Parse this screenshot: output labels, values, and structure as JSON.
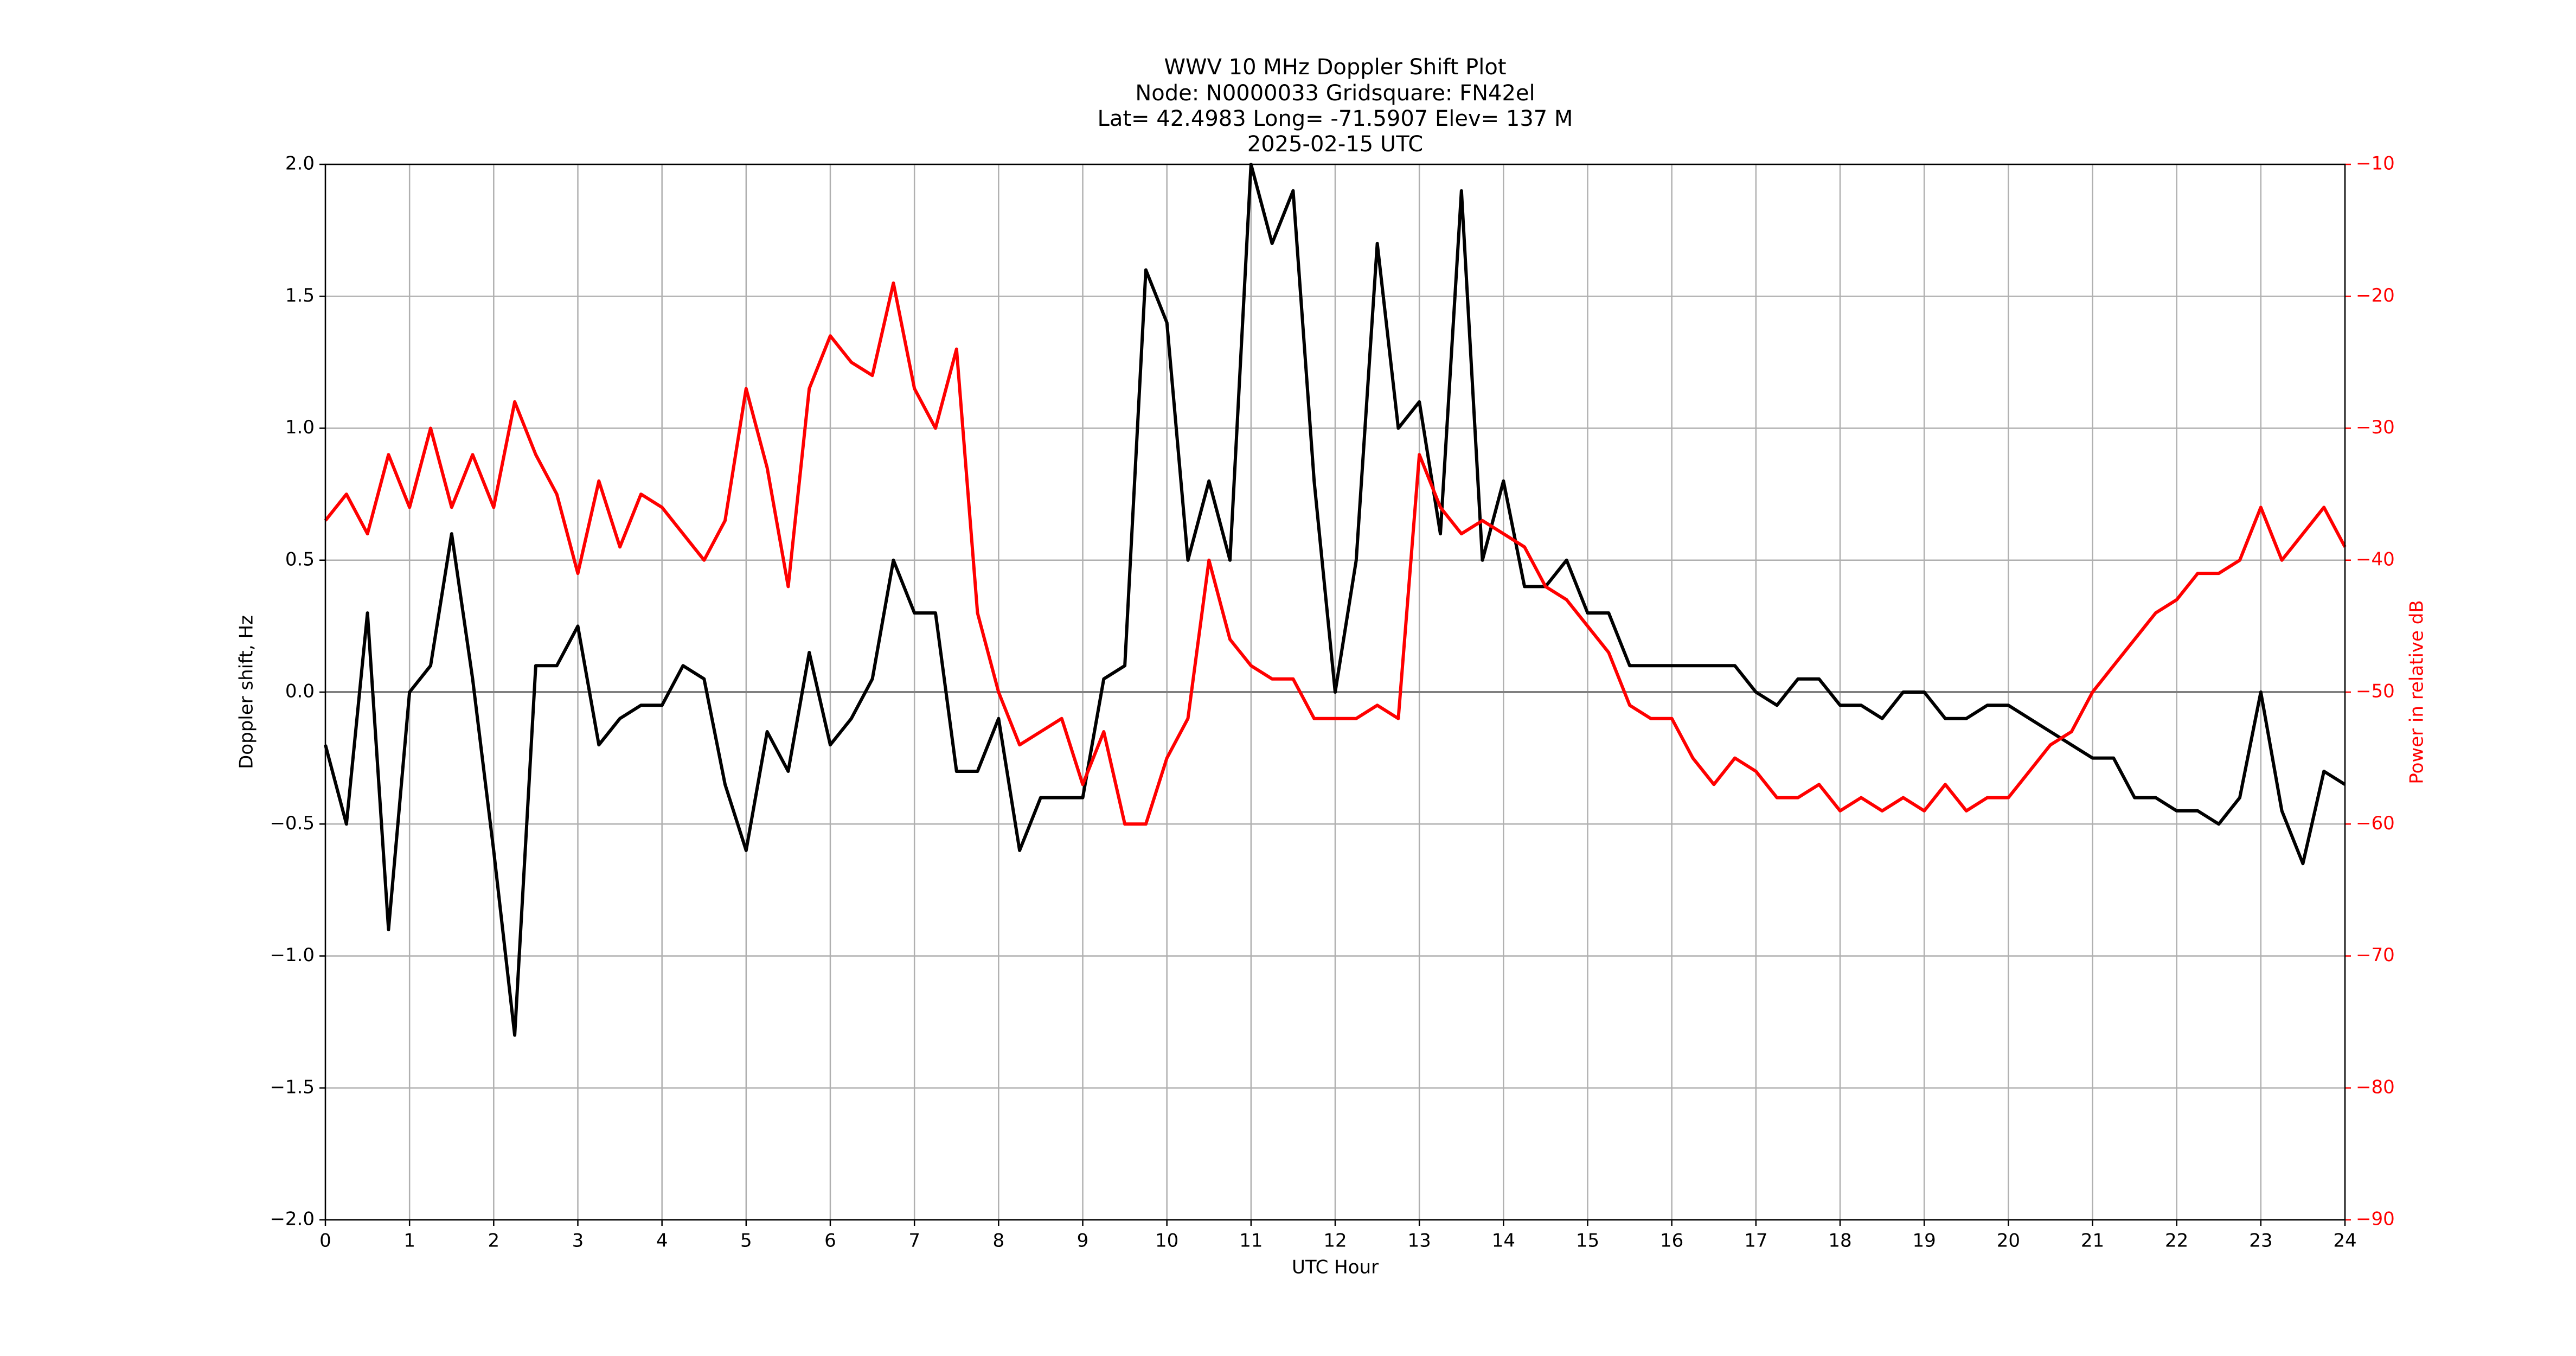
{
  "chart_data": {
    "type": "line",
    "title": [
      "WWV 10 MHz Doppler Shift Plot",
      "Node:  N0000033     Gridsquare:  FN42el",
      "Lat= 42.4983    Long= -71.5907    Elev= 137 M",
      "2025-02-15  UTC"
    ],
    "x_label": "UTC Hour",
    "y_label": "Doppler shift, Hz",
    "y2_label": "Power in relative dB",
    "x": [
      0,
      0.25,
      0.5,
      0.75,
      1,
      1.25,
      1.5,
      1.75,
      2,
      2.25,
      2.5,
      2.75,
      3,
      3.25,
      3.5,
      3.75,
      4,
      4.25,
      4.5,
      4.75,
      5,
      5.25,
      5.5,
      5.75,
      6,
      6.25,
      6.5,
      6.75,
      7,
      7.25,
      7.5,
      7.75,
      8,
      8.25,
      8.5,
      8.75,
      9,
      9.25,
      9.5,
      9.75,
      10,
      10.25,
      10.5,
      10.75,
      11,
      11.25,
      11.5,
      11.75,
      12,
      12.25,
      12.5,
      12.75,
      13,
      13.25,
      13.5,
      13.75,
      14,
      14.25,
      14.5,
      14.75,
      15,
      15.25,
      15.5,
      15.75,
      16,
      16.25,
      16.5,
      16.75,
      17,
      17.25,
      17.5,
      17.75,
      18,
      18.25,
      18.5,
      18.75,
      19,
      19.25,
      19.5,
      19.75,
      20,
      20.25,
      20.5,
      20.75,
      21,
      21.25,
      21.5,
      21.75,
      22,
      22.25,
      22.5,
      22.75,
      23,
      23.25,
      23.5,
      23.75,
      24
    ],
    "series": [
      {
        "name": "Doppler shift",
        "color": "#000000",
        "axis": "y",
        "values": [
          -0.2,
          -0.5,
          0.3,
          -0.9,
          0.0,
          0.1,
          0.6,
          0.05,
          -0.6,
          -1.3,
          0.1,
          0.1,
          0.25,
          -0.2,
          -0.1,
          -0.05,
          -0.05,
          0.1,
          0.05,
          -0.35,
          -0.6,
          -0.15,
          -0.3,
          0.15,
          -0.2,
          -0.1,
          0.05,
          0.5,
          0.3,
          0.3,
          -0.3,
          -0.3,
          -0.1,
          -0.6,
          -0.4,
          -0.4,
          -0.4,
          0.05,
          0.1,
          1.6,
          1.4,
          0.5,
          0.8,
          0.5,
          2.0,
          1.7,
          1.9,
          0.8,
          0.0,
          0.5,
          1.7,
          1.0,
          1.1,
          0.6,
          1.9,
          0.5,
          0.8,
          0.4,
          0.4,
          0.5,
          0.3,
          0.3,
          0.1,
          0.1,
          0.1,
          0.1,
          0.1,
          0.1,
          0.0,
          -0.05,
          0.05,
          0.05,
          -0.05,
          -0.05,
          -0.1,
          0.0,
          0.0,
          -0.1,
          -0.1,
          -0.05,
          -0.05,
          -0.1,
          -0.15,
          -0.2,
          -0.25,
          -0.25,
          -0.4,
          -0.4,
          -0.45,
          -0.45,
          -0.5,
          -0.4,
          0.0,
          -0.45,
          -0.65,
          -0.3,
          -0.35
        ]
      },
      {
        "name": "Power",
        "color": "#ff0000",
        "axis": "y2",
        "values": [
          -37,
          -35,
          -38,
          -32,
          -36,
          -30,
          -36,
          -32,
          -36,
          -28,
          -32,
          -35,
          -41,
          -34,
          -39,
          -35,
          -36,
          -38,
          -40,
          -37,
          -27,
          -33,
          -42,
          -27,
          -23,
          -25,
          -26,
          -19,
          -27,
          -30,
          -24,
          -44,
          -50,
          -54,
          -53,
          -52,
          -57,
          -53,
          -60,
          -60,
          -55,
          -52,
          -40,
          -46,
          -48,
          -49,
          -49,
          -52,
          -52,
          -52,
          -51,
          -52,
          -32,
          -36,
          -38,
          -37,
          -38,
          -39,
          -42,
          -43,
          -45,
          -47,
          -51,
          -52,
          -52,
          -55,
          -57,
          -55,
          -56,
          -58,
          -58,
          -57,
          -59,
          -58,
          -59,
          -58,
          -59,
          -57,
          -59,
          -58,
          -58,
          -56,
          -54,
          -53,
          -50,
          -48,
          -46,
          -44,
          -43,
          -41,
          -41,
          -40,
          -36,
          -40,
          -38,
          -36,
          -39
        ]
      }
    ],
    "xlim": [
      0,
      24
    ],
    "xticks": [
      0,
      1,
      2,
      3,
      4,
      5,
      6,
      7,
      8,
      9,
      10,
      11,
      12,
      13,
      14,
      15,
      16,
      17,
      18,
      19,
      20,
      21,
      22,
      23,
      24
    ],
    "ylim": [
      -2,
      2
    ],
    "yticks": [
      {
        "value": -2,
        "label": "−2.0"
      },
      {
        "value": -1.5,
        "label": "−1.5"
      },
      {
        "value": -1,
        "label": "−1.0"
      },
      {
        "value": -0.5,
        "label": "−0.5"
      },
      {
        "value": 0,
        "label": "0.0"
      },
      {
        "value": 0.5,
        "label": "0.5"
      },
      {
        "value": 1,
        "label": "1.0"
      },
      {
        "value": 1.5,
        "label": "1.5"
      },
      {
        "value": 2,
        "label": "2.0"
      }
    ],
    "y2lim": [
      -90,
      -10
    ],
    "y2ticks": [
      {
        "value": -90,
        "label": "−90"
      },
      {
        "value": -80,
        "label": "−80"
      },
      {
        "value": -70,
        "label": "−70"
      },
      {
        "value": -60,
        "label": "−60"
      },
      {
        "value": -50,
        "label": "−50"
      },
      {
        "value": -40,
        "label": "−40"
      },
      {
        "value": -30,
        "label": "−30"
      },
      {
        "value": -20,
        "label": "−20"
      },
      {
        "value": -10,
        "label": "−10"
      }
    ],
    "grid": true,
    "y2_color": "#ff0000"
  }
}
